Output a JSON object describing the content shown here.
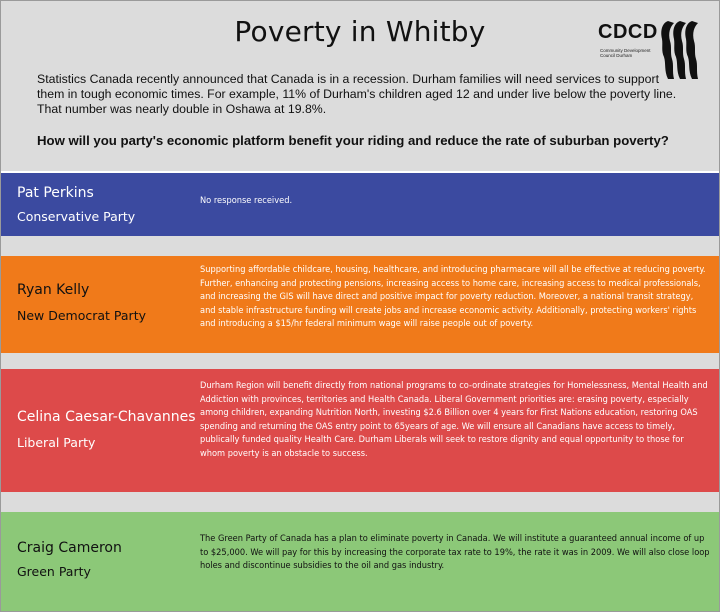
{
  "header": {
    "title": "Poverty in Whitby",
    "logo_text": "CDCD",
    "logo_subtitle": "Community Development Council Durham",
    "intro": "Statistics Canada recently announced that Canada is in a recession. Durham families will need services to support them in tough economic times. For example, 11% of Durham's children aged 12 and under live below the poverty line. That number was nearly double in Oshawa at 19.8%.",
    "question": "How will you party's economic platform benefit your riding and reduce the rate of suburban poverty?"
  },
  "colors": {
    "header_bg": "#dcdcdc",
    "conservative": "#3b4aa0",
    "ndp": "#f07a1a",
    "liberal": "#dd4a4a",
    "green": "#8cc878"
  },
  "candidates": [
    {
      "name": "Pat Perkins",
      "party": "Conservative Party",
      "response": "No response received."
    },
    {
      "name": "Ryan Kelly",
      "party": "New Democrat Party",
      "response": "Supporting affordable childcare, housing, healthcare, and introducing pharmacare will all be effective at reducing poverty. Further, enhancing and protecting pensions, increasing access to home care, increasing access to medical professionals, and increasing the GIS will have direct and positive impact for poverty reduction. Moreover, a national transit strategy, and stable infrastructure funding will create jobs and increase economic activity. Additionally, protecting workers' rights and introducing a $15/hr federal minimum wage will raise people out of poverty."
    },
    {
      "name": "Celina Caesar-Chavannes",
      "party": "Liberal Party",
      "response": "Durham Region will benefit directly from national programs to co-ordinate strategies for Homelessness, Mental Health and Addiction with provinces, territories and Health Canada. Liberal Government priorities are: erasing poverty, especially among children, expanding Nutrition North, investing $2.6 Billion over 4 years for First Nations education, restoring OAS spending and returning the OAS entry point to 65years of age. We will ensure all Canadians have access to timely, publically funded quality Health Care. Durham Liberals will seek to restore dignity and equal opportunity to those for whom poverty is an obstacle to success."
    },
    {
      "name": "Craig Cameron",
      "party": "Green Party",
      "response": "The Green Party of Canada has a plan to eliminate poverty in Canada.  We will institute a guaranteed annual income of up to $25,000.  We will pay for this by increasing the corporate tax rate to 19%, the rate it was in 2009.  We will also close loop holes and discontinue subsidies to the oil and gas industry."
    }
  ]
}
